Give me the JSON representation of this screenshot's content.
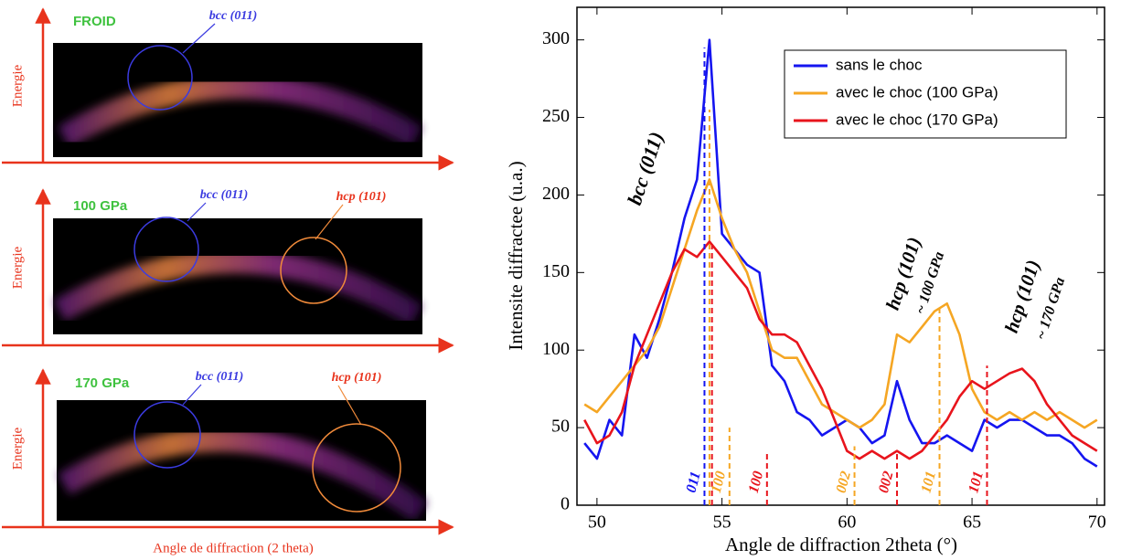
{
  "panels": [
    {
      "title": "FROID",
      "y_label": "Energie",
      "notes": [
        "bcc (011)"
      ]
    },
    {
      "title": "100 GPa",
      "y_label": "Energie",
      "notes": [
        "bcc (011)",
        "hcp (101)"
      ]
    },
    {
      "title": "170 GPa",
      "y_label": "Energie",
      "notes": [
        "bcc (011)",
        "hcp (101)"
      ]
    }
  ],
  "panels_x_label": "Angle de diffraction (2 theta)",
  "chart_data": {
    "type": "line",
    "x_label": "Angle de diffraction 2theta (°)",
    "y_label": "Intensite diffractee (u.a.)",
    "xlim": [
      49.2,
      70.3
    ],
    "ylim": [
      0,
      321
    ],
    "xticks": [
      50,
      55,
      60,
      65,
      70
    ],
    "yticks": [
      0,
      50,
      100,
      150,
      200,
      250,
      300
    ],
    "legend": "upper right",
    "x": [
      49.5,
      50,
      50.5,
      51,
      51.5,
      52,
      52.5,
      53,
      53.5,
      54,
      54.5,
      55,
      55.5,
      56,
      56.5,
      57,
      57.5,
      58,
      58.5,
      59,
      59.5,
      60,
      60.5,
      61,
      61.5,
      62,
      62.5,
      63,
      63.5,
      64,
      64.5,
      65,
      65.5,
      66,
      66.5,
      67,
      67.5,
      68,
      68.5,
      69,
      69.5,
      70
    ],
    "series": [
      {
        "name": "sans le choc",
        "color": "#1515f0",
        "values": [
          40,
          30,
          55,
          45,
          110,
          95,
          120,
          150,
          185,
          210,
          300,
          175,
          165,
          155,
          150,
          90,
          80,
          60,
          55,
          45,
          50,
          55,
          50,
          40,
          45,
          80,
          55,
          40,
          40,
          45,
          40,
          35,
          55,
          50,
          55,
          55,
          50,
          45,
          45,
          40,
          30,
          25
        ]
      },
      {
        "name": "avec le choc (100 GPa)",
        "color": "#f5a623",
        "values": [
          65,
          60,
          70,
          80,
          90,
          100,
          115,
          140,
          165,
          190,
          210,
          185,
          165,
          150,
          125,
          100,
          95,
          95,
          80,
          65,
          60,
          55,
          50,
          55,
          65,
          110,
          105,
          115,
          125,
          130,
          110,
          75,
          60,
          55,
          60,
          55,
          60,
          55,
          60,
          55,
          50,
          55
        ]
      },
      {
        "name": "avec le choc (170 GPa)",
        "color": "#e8141c",
        "values": [
          55,
          40,
          45,
          60,
          90,
          110,
          130,
          150,
          165,
          160,
          170,
          160,
          150,
          140,
          120,
          110,
          110,
          105,
          90,
          75,
          55,
          35,
          30,
          35,
          30,
          35,
          30,
          35,
          45,
          55,
          70,
          80,
          75,
          80,
          85,
          88,
          80,
          65,
          55,
          45,
          40,
          35
        ]
      }
    ],
    "reflections": [
      {
        "x": 54.3,
        "height": 295,
        "color": "#1515f0",
        "label": "011"
      },
      {
        "x": 54.5,
        "height": 255,
        "color": "#f5a623"
      },
      {
        "x": 54.6,
        "height": 170,
        "color": "#e8141c"
      },
      {
        "x": 55.3,
        "height": 50,
        "color": "#f5a623",
        "label": "100"
      },
      {
        "x": 56.8,
        "height": 35,
        "color": "#e8141c",
        "label": "100"
      },
      {
        "x": 60.3,
        "height": 38,
        "color": "#f5a623",
        "label": "002"
      },
      {
        "x": 62.0,
        "height": 33,
        "color": "#e8141c",
        "label": "002"
      },
      {
        "x": 63.7,
        "height": 128,
        "color": "#f5a623",
        "label": "101"
      },
      {
        "x": 65.6,
        "height": 90,
        "color": "#e8141c",
        "label": "101"
      }
    ],
    "annotations": [
      "bcc (011)",
      "hcp (101)",
      "~ 100 GPa",
      "hcp (101)",
      "~ 170 GPa"
    ]
  }
}
